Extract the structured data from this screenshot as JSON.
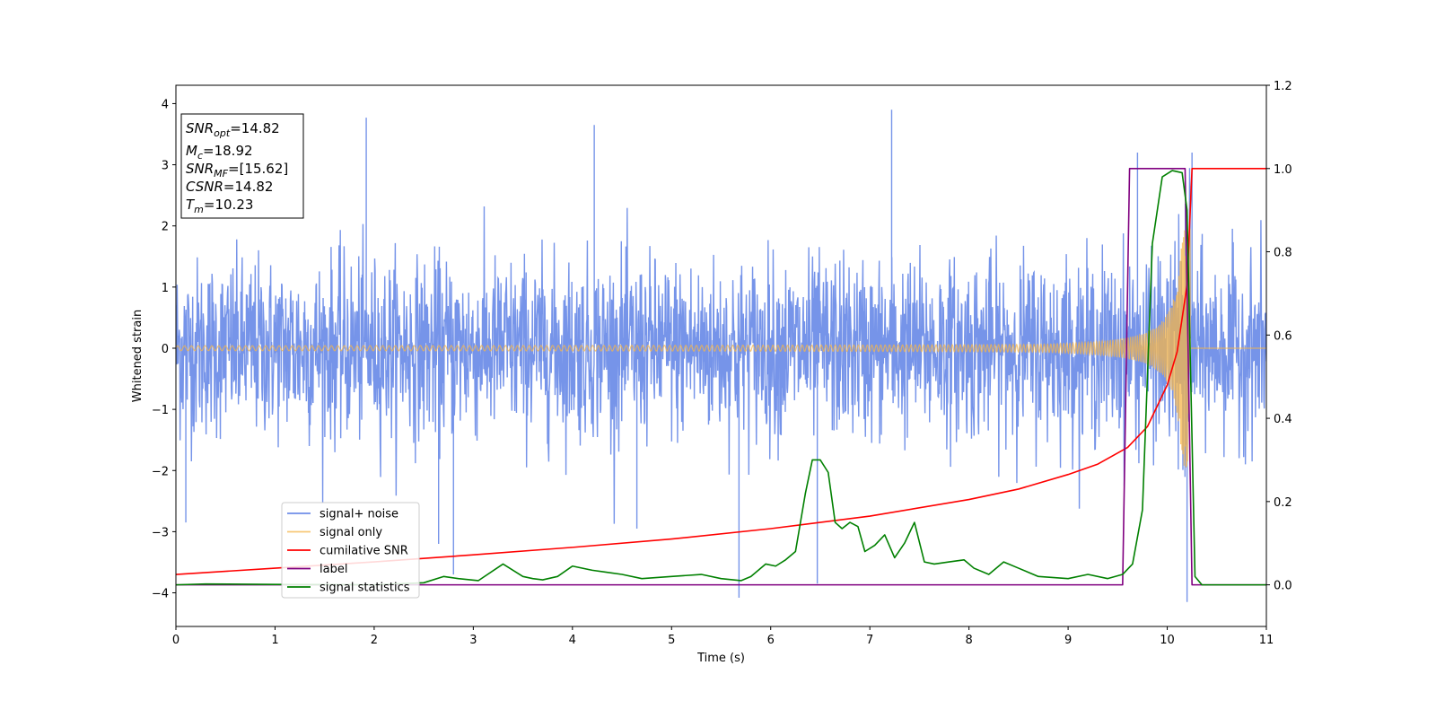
{
  "chart_data": {
    "type": "line",
    "xlabel": "Time (s)",
    "ylabel": "Whitened strain",
    "xlim": [
      0,
      11
    ],
    "ylim": [
      -4.55,
      4.3
    ],
    "y2lim": [
      -0.1,
      1.2
    ],
    "x_ticks": [
      "0",
      "1",
      "2",
      "3",
      "4",
      "5",
      "6",
      "7",
      "8",
      "9",
      "10",
      "11"
    ],
    "y_ticks": [
      "−4",
      "−3",
      "−2",
      "−1",
      "0",
      "1",
      "2",
      "3",
      "4"
    ],
    "y2_ticks": [
      "0.0",
      "0.2",
      "0.4",
      "0.6",
      "0.8",
      "1.0",
      "1.2"
    ],
    "info_box": {
      "lines": [
        {
          "main": "SNR",
          "sub": "opt",
          "value": "=14.82"
        },
        {
          "main": "M",
          "sub": "c",
          "value": "=18.92"
        },
        {
          "main": "SNR",
          "sub": "MF",
          "value": "=[15.62]"
        },
        {
          "main": "CSNR",
          "sub": "",
          "value": "=14.82"
        },
        {
          "main": "T",
          "sub": "m",
          "value": "=10.23"
        }
      ]
    },
    "legend": {
      "position": "lower-left",
      "entries": [
        "signal+ noise",
        "signal only",
        "cumilative SNR",
        "label",
        "signal statistics"
      ]
    },
    "series": [
      {
        "name": "signal+ noise",
        "axis": "left",
        "color": "#6f8ee8",
        "noise_std": 0.72,
        "spikes": [
          [
            1.92,
            3.77
          ],
          [
            4.22,
            3.65
          ],
          [
            7.22,
            3.9
          ],
          [
            10.25,
            3.2
          ],
          [
            9.7,
            3.2
          ],
          [
            2.8,
            -3.7
          ],
          [
            5.68,
            -4.08
          ],
          [
            6.47,
            -3.85
          ],
          [
            10.2,
            -4.15
          ],
          [
            0.1,
            -2.85
          ],
          [
            2.65,
            -3.2
          ],
          [
            4.65,
            -2.95
          ]
        ],
        "note": "dense noisy strain, roughly within [-3, 3]"
      },
      {
        "name": "signal only",
        "axis": "left",
        "color": "#f5b54a",
        "chirp": {
          "t_start": 0,
          "t_merge": 10.23,
          "amp_start": 0.04,
          "amp_end": 1.95
        }
      },
      {
        "name": "cumilative SNR",
        "axis": "right",
        "color": "#ff0000",
        "x": [
          0,
          1,
          2,
          3,
          4,
          5,
          6,
          7,
          8,
          8.5,
          9,
          9.3,
          9.6,
          9.8,
          10.0,
          10.1,
          10.2,
          10.25,
          11
        ],
        "values": [
          0.025,
          0.04,
          0.055,
          0.072,
          0.09,
          0.11,
          0.135,
          0.165,
          0.205,
          0.23,
          0.265,
          0.29,
          0.33,
          0.38,
          0.48,
          0.56,
          0.72,
          1.0,
          1.0
        ]
      },
      {
        "name": "label",
        "axis": "right",
        "color": "#800080",
        "x": [
          0,
          9.55,
          9.62,
          10.18,
          10.25,
          11
        ],
        "values": [
          0.0,
          0.0,
          1.0,
          1.0,
          0.0,
          0.0
        ]
      },
      {
        "name": "signal statistics",
        "axis": "right",
        "color": "#008000",
        "x": [
          0,
          0.3,
          1.0,
          2.0,
          2.5,
          2.7,
          2.85,
          3.05,
          3.3,
          3.5,
          3.6,
          3.7,
          3.85,
          4.0,
          4.2,
          4.35,
          4.5,
          4.7,
          5.0,
          5.3,
          5.5,
          5.7,
          5.8,
          5.95,
          6.05,
          6.15,
          6.25,
          6.35,
          6.42,
          6.5,
          6.58,
          6.65,
          6.72,
          6.8,
          6.88,
          6.95,
          7.05,
          7.15,
          7.25,
          7.35,
          7.45,
          7.55,
          7.65,
          7.8,
          7.95,
          8.05,
          8.2,
          8.35,
          8.5,
          8.7,
          9.0,
          9.2,
          9.4,
          9.55,
          9.65,
          9.75,
          9.85,
          9.95,
          10.05,
          10.15,
          10.2,
          10.25,
          10.28,
          10.35,
          11
        ],
        "values": [
          0.0,
          0.002,
          0.001,
          0.0,
          0.005,
          0.02,
          0.015,
          0.01,
          0.05,
          0.02,
          0.015,
          0.012,
          0.02,
          0.045,
          0.035,
          0.03,
          0.025,
          0.015,
          0.02,
          0.025,
          0.015,
          0.01,
          0.02,
          0.05,
          0.045,
          0.06,
          0.08,
          0.22,
          0.3,
          0.3,
          0.27,
          0.15,
          0.135,
          0.15,
          0.14,
          0.08,
          0.095,
          0.12,
          0.065,
          0.1,
          0.15,
          0.055,
          0.05,
          0.055,
          0.06,
          0.04,
          0.025,
          0.055,
          0.04,
          0.02,
          0.015,
          0.025,
          0.015,
          0.025,
          0.05,
          0.18,
          0.82,
          0.98,
          0.995,
          0.99,
          0.9,
          0.35,
          0.02,
          0.0,
          0.0
        ]
      }
    ]
  }
}
